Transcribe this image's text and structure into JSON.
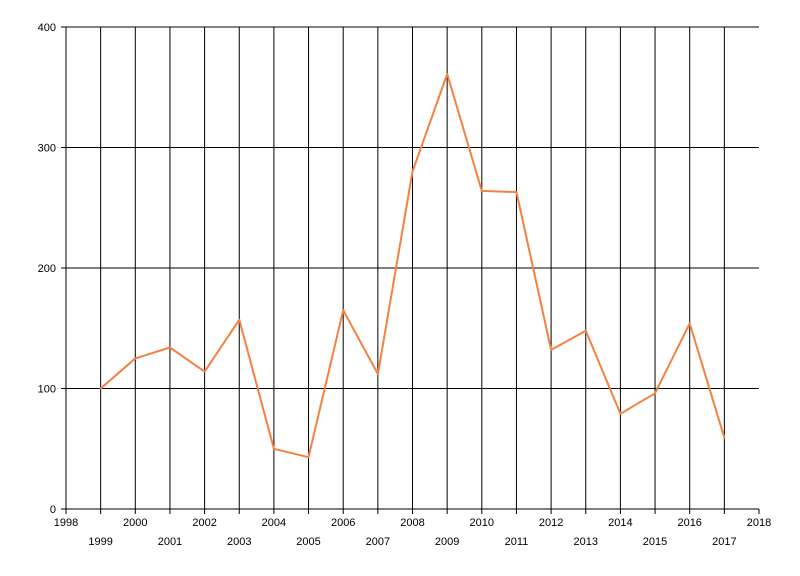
{
  "chart_data": {
    "type": "line",
    "title": "",
    "xlabel": "",
    "ylabel": "",
    "xlim": [
      1998,
      2018
    ],
    "ylim": [
      0,
      400
    ],
    "x_ticks": [
      1998,
      1999,
      2000,
      2001,
      2002,
      2003,
      2004,
      2005,
      2006,
      2007,
      2008,
      2009,
      2010,
      2011,
      2012,
      2013,
      2014,
      2015,
      2016,
      2017,
      2018
    ],
    "y_ticks": [
      0,
      100,
      200,
      300,
      400
    ],
    "grid": true,
    "legend": "none",
    "series": [
      {
        "color": "#F4813F",
        "x": [
          1999,
          2000,
          2001,
          2002,
          2003,
          2004,
          2005,
          2006,
          2007,
          2008,
          2009,
          2010,
          2011,
          2012,
          2013,
          2014,
          2015,
          2016,
          2017
        ],
        "values": [
          100,
          125,
          134,
          114,
          157,
          50,
          43,
          165,
          112,
          280,
          361,
          264,
          263,
          132,
          148,
          79,
          96,
          154,
          59
        ]
      }
    ]
  }
}
